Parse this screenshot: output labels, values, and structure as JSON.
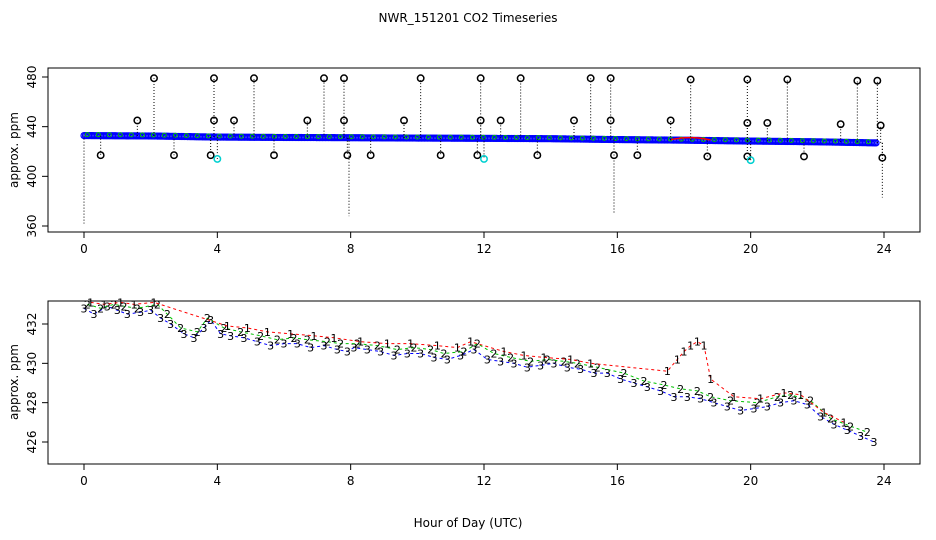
{
  "title": "NWR_151201  CO2 Timeseries",
  "xlabel": "Hour of Day (UTC)",
  "colors": {
    "black": "#000000",
    "blue": "#0000ff",
    "green": "#00c000",
    "red": "#ff0000",
    "cyan": "#00d0d0"
  },
  "chart_data": [
    {
      "type": "scatter",
      "panel": "top",
      "ylabel": "approx. ppm",
      "xlim": [
        0,
        24
      ],
      "ylim": [
        360,
        480
      ],
      "x_ticks": [
        "0",
        "4",
        "8",
        "12",
        "16",
        "20",
        "24"
      ],
      "y_ticks": [
        "360",
        "400",
        "440",
        "480"
      ],
      "series": [
        {
          "name": "baseline",
          "color": "blue",
          "symbol": "o",
          "points": [
            [
              0.0,
              432.8
            ],
            [
              2.0,
              432.5
            ],
            [
              4.0,
              431.6
            ],
            [
              6.0,
              431.3
            ],
            [
              8.0,
              431.1
            ],
            [
              10.0,
              430.8
            ],
            [
              12.0,
              430.6
            ],
            [
              14.0,
              430.3
            ],
            [
              16.0,
              429.6
            ],
            [
              18.0,
              429.1
            ],
            [
              20.0,
              428.4
            ],
            [
              22.0,
              427.8
            ],
            [
              23.8,
              426.9
            ]
          ]
        },
        {
          "name": "high_spikes",
          "color": "black",
          "symbol": "o",
          "points": [
            [
              1.6,
              445
            ],
            [
              2.1,
              479
            ],
            [
              3.9,
              479
            ],
            [
              3.9,
              445
            ],
            [
              4.5,
              445
            ],
            [
              5.1,
              479
            ],
            [
              6.7,
              445
            ],
            [
              7.2,
              479
            ],
            [
              7.8,
              479
            ],
            [
              7.8,
              445
            ],
            [
              9.6,
              445
            ],
            [
              10.1,
              479
            ],
            [
              11.9,
              479
            ],
            [
              11.9,
              445
            ],
            [
              12.5,
              445
            ],
            [
              13.1,
              479
            ],
            [
              14.7,
              445
            ],
            [
              15.2,
              479
            ],
            [
              15.8,
              479
            ],
            [
              15.8,
              445
            ],
            [
              17.6,
              445
            ],
            [
              18.2,
              478
            ],
            [
              19.9,
              478
            ],
            [
              19.9,
              443
            ],
            [
              20.5,
              443
            ],
            [
              21.1,
              478
            ],
            [
              22.7,
              442
            ],
            [
              23.2,
              477
            ],
            [
              23.8,
              477
            ],
            [
              23.9,
              441
            ]
          ]
        },
        {
          "name": "low_spikes",
          "color": "black",
          "symbol": "o",
          "points": [
            [
              0.5,
              417
            ],
            [
              2.7,
              417
            ],
            [
              3.8,
              417
            ],
            [
              5.7,
              417
            ],
            [
              7.9,
              417
            ],
            [
              8.6,
              417
            ],
            [
              10.7,
              417
            ],
            [
              11.8,
              417
            ],
            [
              13.6,
              417
            ],
            [
              15.9,
              417
            ],
            [
              16.6,
              417
            ],
            [
              18.7,
              416
            ],
            [
              19.9,
              416
            ],
            [
              21.6,
              416
            ],
            [
              23.95,
              415
            ]
          ]
        },
        {
          "name": "cyan_points",
          "color": "cyan",
          "symbol": "o",
          "points": [
            [
              4.0,
              414
            ],
            [
              12.0,
              414
            ],
            [
              20.0,
              413
            ]
          ]
        },
        {
          "name": "black_drops",
          "color": "black",
          "symbol": "line",
          "points": [
            [
              0.0,
              362
            ],
            [
              7.95,
              368
            ],
            [
              15.9,
              370
            ],
            [
              23.95,
              383
            ]
          ]
        }
      ]
    },
    {
      "type": "scatter",
      "panel": "bottom",
      "ylabel": "approx. ppm",
      "xlim": [
        0,
        24
      ],
      "ylim": [
        425.5,
        433.5
      ],
      "x_ticks": [
        "0",
        "4",
        "8",
        "12",
        "16",
        "20",
        "24"
      ],
      "y_ticks": [
        "426",
        "428",
        "430",
        "432"
      ],
      "series": [
        {
          "name": "3",
          "label": "3",
          "color": "blue",
          "points": [
            [
              0.0,
              432.8
            ],
            [
              0.3,
              432.5
            ],
            [
              0.7,
              432.9
            ],
            [
              1.0,
              432.7
            ],
            [
              1.3,
              432.5
            ],
            [
              1.7,
              432.6
            ],
            [
              2.0,
              432.7
            ],
            [
              2.3,
              432.3
            ],
            [
              2.6,
              432.0
            ],
            [
              3.0,
              431.5
            ],
            [
              3.3,
              431.3
            ],
            [
              3.6,
              431.8
            ],
            [
              3.8,
              432.2
            ],
            [
              4.1,
              431.5
            ],
            [
              4.4,
              431.4
            ],
            [
              4.8,
              431.3
            ],
            [
              5.2,
              431.1
            ],
            [
              5.6,
              430.9
            ],
            [
              6.0,
              431.0
            ],
            [
              6.4,
              431.0
            ],
            [
              6.8,
              430.8
            ],
            [
              7.2,
              430.9
            ],
            [
              7.6,
              430.7
            ],
            [
              7.9,
              430.6
            ],
            [
              8.1,
              430.8
            ],
            [
              8.5,
              430.7
            ],
            [
              8.9,
              430.6
            ],
            [
              9.3,
              430.4
            ],
            [
              9.7,
              430.5
            ],
            [
              10.1,
              430.5
            ],
            [
              10.5,
              430.3
            ],
            [
              10.9,
              430.2
            ],
            [
              11.3,
              430.4
            ],
            [
              11.7,
              430.7
            ],
            [
              12.1,
              430.2
            ],
            [
              12.5,
              430.1
            ],
            [
              12.9,
              430.0
            ],
            [
              13.3,
              429.8
            ],
            [
              13.7,
              429.9
            ],
            [
              14.1,
              430.0
            ],
            [
              14.5,
              429.8
            ],
            [
              14.9,
              429.7
            ],
            [
              15.3,
              429.5
            ],
            [
              15.7,
              429.5
            ],
            [
              16.1,
              429.2
            ],
            [
              16.5,
              429.0
            ],
            [
              16.9,
              428.8
            ],
            [
              17.3,
              428.6
            ],
            [
              17.7,
              428.3
            ],
            [
              18.1,
              428.3
            ],
            [
              18.5,
              428.2
            ],
            [
              18.9,
              428.0
            ],
            [
              19.3,
              427.8
            ],
            [
              19.7,
              427.6
            ],
            [
              20.1,
              427.7
            ],
            [
              20.5,
              427.8
            ],
            [
              20.9,
              428.0
            ],
            [
              21.3,
              428.1
            ],
            [
              21.7,
              427.9
            ],
            [
              22.1,
              427.3
            ],
            [
              22.5,
              426.9
            ],
            [
              22.9,
              426.6
            ],
            [
              23.3,
              426.3
            ],
            [
              23.7,
              426.0
            ]
          ]
        },
        {
          "name": "2",
          "label": "2",
          "color": "green",
          "points": [
            [
              0.1,
              433.0
            ],
            [
              0.5,
              432.8
            ],
            [
              0.9,
              433.0
            ],
            [
              1.2,
              432.9
            ],
            [
              1.6,
              432.8
            ],
            [
              2.2,
              433.0
            ],
            [
              2.5,
              432.5
            ],
            [
              2.9,
              431.8
            ],
            [
              3.4,
              431.6
            ],
            [
              3.7,
              432.3
            ],
            [
              4.2,
              431.8
            ],
            [
              4.7,
              431.6
            ],
            [
              5.3,
              431.4
            ],
            [
              5.8,
              431.2
            ],
            [
              6.3,
              431.3
            ],
            [
              6.7,
              431.2
            ],
            [
              7.3,
              431.1
            ],
            [
              7.7,
              431.0
            ],
            [
              8.2,
              431.0
            ],
            [
              8.8,
              430.9
            ],
            [
              9.4,
              430.7
            ],
            [
              9.9,
              430.8
            ],
            [
              10.4,
              430.7
            ],
            [
              10.8,
              430.5
            ],
            [
              11.4,
              430.6
            ],
            [
              11.8,
              431.0
            ],
            [
              12.3,
              430.5
            ],
            [
              12.8,
              430.3
            ],
            [
              13.4,
              430.1
            ],
            [
              13.9,
              430.2
            ],
            [
              14.4,
              430.1
            ],
            [
              14.8,
              430.0
            ],
            [
              15.4,
              429.8
            ],
            [
              16.2,
              429.5
            ],
            [
              16.8,
              429.1
            ],
            [
              17.4,
              428.9
            ],
            [
              17.9,
              428.7
            ],
            [
              18.4,
              428.6
            ],
            [
              18.8,
              428.3
            ],
            [
              19.4,
              428.1
            ],
            [
              20.2,
              428.0
            ],
            [
              20.8,
              428.3
            ],
            [
              21.2,
              428.4
            ],
            [
              21.8,
              428.1
            ],
            [
              22.4,
              427.2
            ],
            [
              23.0,
              426.8
            ],
            [
              23.5,
              426.5
            ]
          ]
        },
        {
          "name": "1",
          "label": "1",
          "color": "red",
          "points": [
            [
              0.2,
              433.1
            ],
            [
              0.6,
              433.0
            ],
            [
              1.1,
              433.1
            ],
            [
              1.5,
              433.0
            ],
            [
              2.1,
              433.1
            ],
            [
              4.3,
              431.9
            ],
            [
              4.9,
              431.8
            ],
            [
              5.5,
              431.6
            ],
            [
              6.2,
              431.5
            ],
            [
              6.9,
              431.4
            ],
            [
              7.5,
              431.3
            ],
            [
              8.3,
              431.1
            ],
            [
              9.1,
              431.0
            ],
            [
              9.8,
              431.0
            ],
            [
              10.6,
              430.9
            ],
            [
              11.2,
              430.8
            ],
            [
              11.6,
              431.1
            ],
            [
              12.6,
              430.6
            ],
            [
              13.2,
              430.4
            ],
            [
              13.8,
              430.3
            ],
            [
              14.6,
              430.2
            ],
            [
              15.2,
              430.0
            ],
            [
              17.5,
              429.6
            ],
            [
              17.8,
              430.2
            ],
            [
              18.0,
              430.6
            ],
            [
              18.2,
              430.9
            ],
            [
              18.4,
              431.1
            ],
            [
              18.6,
              430.9
            ],
            [
              18.8,
              429.2
            ],
            [
              19.5,
              428.3
            ],
            [
              20.3,
              428.2
            ],
            [
              21.0,
              428.5
            ],
            [
              21.5,
              428.4
            ],
            [
              22.2,
              427.5
            ],
            [
              22.8,
              427.0
            ]
          ]
        }
      ]
    }
  ]
}
